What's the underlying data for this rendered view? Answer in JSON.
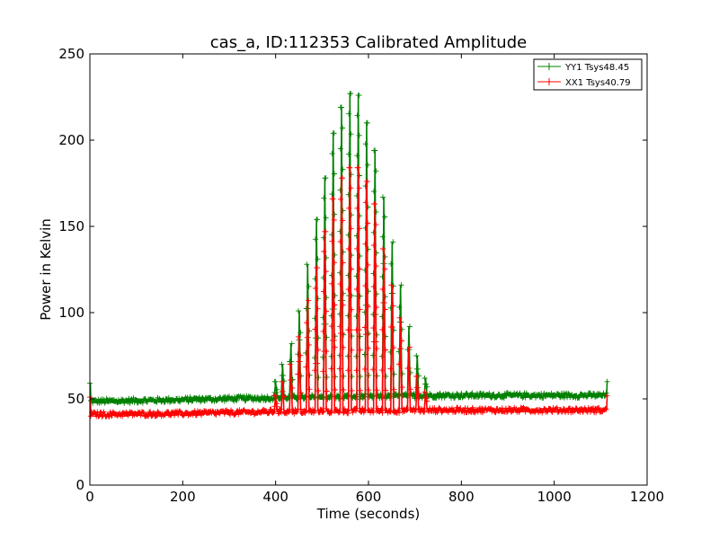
{
  "chart_data": {
    "type": "line",
    "title": "cas_a, ID:112353 Calibrated Amplitude",
    "xlabel": "Time (seconds)",
    "ylabel": "Power in Kelvin",
    "xlim": [
      0,
      1200
    ],
    "ylim": [
      0,
      250
    ],
    "xticks": [
      0,
      200,
      400,
      600,
      800,
      1000,
      1200
    ],
    "yticks": [
      0,
      50,
      100,
      150,
      200,
      250
    ],
    "grid": false,
    "legend_position": "top-right",
    "x_end": 1115,
    "series": [
      {
        "name": "YY1 Tsys48.45",
        "color": "#008000",
        "baseline": [
          [
            0,
            48.5
          ],
          [
            200,
            49.5
          ],
          [
            380,
            50.5
          ],
          [
            750,
            52.0
          ],
          [
            1115,
            52.0
          ]
        ],
        "spike_times": [
          400,
          415,
          433,
          451,
          469,
          488,
          506,
          524,
          542,
          560,
          578,
          596,
          614,
          633,
          651,
          669,
          687,
          705,
          723
        ],
        "spike_peaks": [
          60,
          70,
          82,
          101,
          128,
          154,
          178,
          204,
          219,
          227,
          226,
          210,
          194,
          167,
          141,
          116,
          92,
          75,
          62
        ],
        "edge_spikes": [
          [
            0,
            59
          ],
          [
            1115,
            60
          ]
        ]
      },
      {
        "name": "XX1 Tsys40.79",
        "color": "#ff0000",
        "baseline": [
          [
            0,
            41.0
          ],
          [
            200,
            41.5
          ],
          [
            380,
            42.5
          ],
          [
            750,
            43.5
          ],
          [
            1115,
            43.5
          ]
        ],
        "spike_times": [
          400,
          415,
          433,
          451,
          469,
          488,
          506,
          524,
          542,
          560,
          578,
          596,
          614,
          633,
          651,
          669,
          687,
          705,
          723
        ],
        "spike_peaks": [
          52,
          60,
          70,
          86,
          107,
          126,
          147,
          166,
          178,
          184,
          184,
          176,
          163,
          137,
          116,
          97,
          80,
          63,
          54
        ],
        "edge_spikes": [
          [
            0,
            51
          ],
          [
            1115,
            52
          ]
        ]
      }
    ]
  }
}
